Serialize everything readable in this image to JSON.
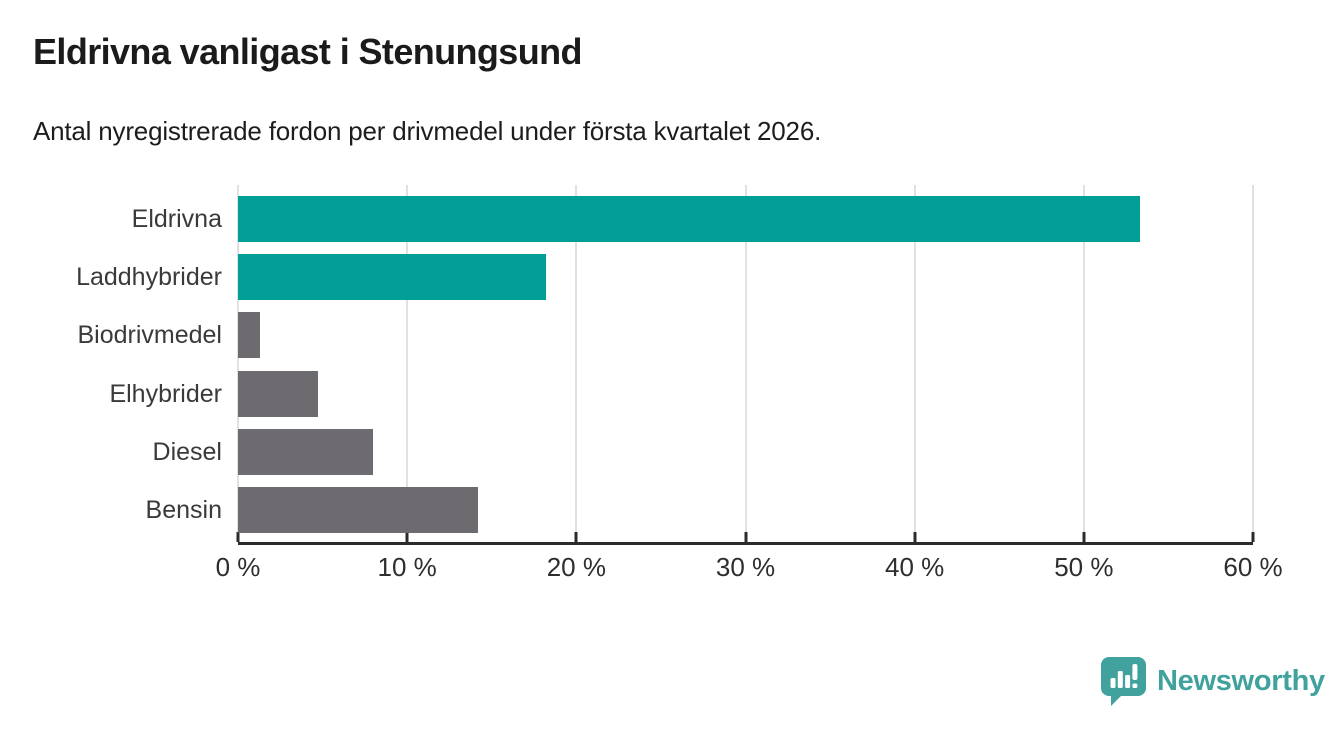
{
  "title": "Eldrivna vanligast i Stenungsund",
  "subtitle": "Antal nyregistrerade fordon per drivmedel under första kvartalet 2026.",
  "branding": {
    "logo_text": "Newsworthy",
    "logo_icon": "newsworthy-speech-bubble-chart-icon",
    "logo_color": "#41a29d"
  },
  "colors": {
    "highlight": "#009e94",
    "neutral": "#6d6b70",
    "gridline": "#e1e1e1",
    "axis": "#2b2b2b",
    "title_text": "#1b1b1b",
    "label_text": "#3a3a3a"
  },
  "chart_data": {
    "type": "bar",
    "orientation": "horizontal",
    "title": "Eldrivna vanligast i Stenungsund",
    "subtitle": "Antal nyregistrerade fordon per drivmedel under första kvartalet 2026.",
    "categories": [
      "Eldrivna",
      "Laddhybrider",
      "Biodrivmedel",
      "Elhybrider",
      "Diesel",
      "Bensin"
    ],
    "values": [
      53.3,
      18.2,
      1.3,
      4.7,
      8.0,
      14.2
    ],
    "unit": "%",
    "series_colors": [
      "#009e94",
      "#009e94",
      "#6d6b70",
      "#6d6b70",
      "#6d6b70",
      "#6d6b70"
    ],
    "xlim": [
      0,
      60
    ],
    "x_tick_step": 10,
    "x_tick_labels": [
      "0 %",
      "10 %",
      "20 %",
      "30 %",
      "40 %",
      "50 %",
      "60 %"
    ],
    "grid": "vertical",
    "legend": false
  }
}
